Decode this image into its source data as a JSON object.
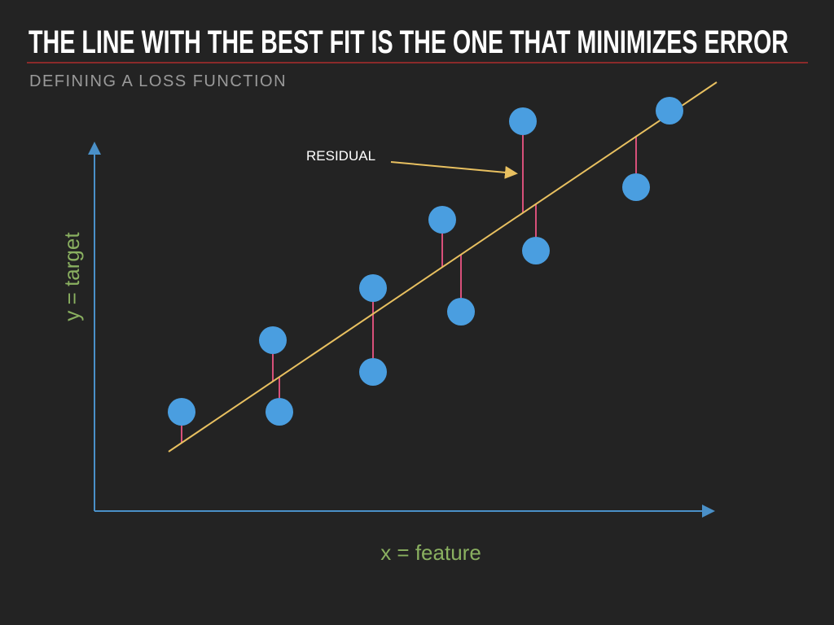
{
  "header": {
    "title": "THE LINE WITH THE BEST FIT IS THE ONE THAT MINIMIZES ERROR",
    "subtitle": "DEFINING A LOSS FUNCTION"
  },
  "diagram": {
    "annotation": "RESIDUAL",
    "y_label": "y = target",
    "x_label": "x = feature"
  }
}
